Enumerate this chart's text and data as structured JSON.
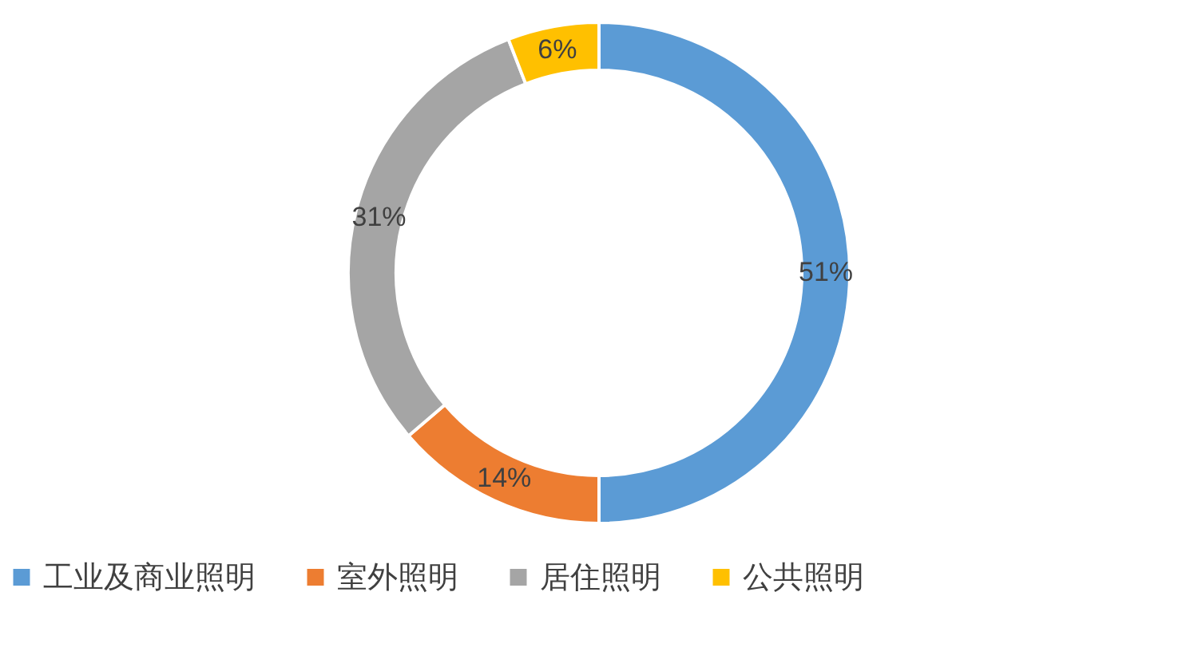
{
  "chart_data": {
    "type": "donut",
    "categories": [
      "工业及商业照明",
      "室外照明",
      "居住照明",
      "公共照明"
    ],
    "values": [
      51,
      14,
      31,
      6
    ],
    "colors": [
      "#5b9bd5",
      "#ed7d31",
      "#a5a5a5",
      "#ffc000"
    ],
    "value_labels": [
      "51%",
      "14%",
      "31%",
      "6%"
    ],
    "legend": "bottom"
  }
}
